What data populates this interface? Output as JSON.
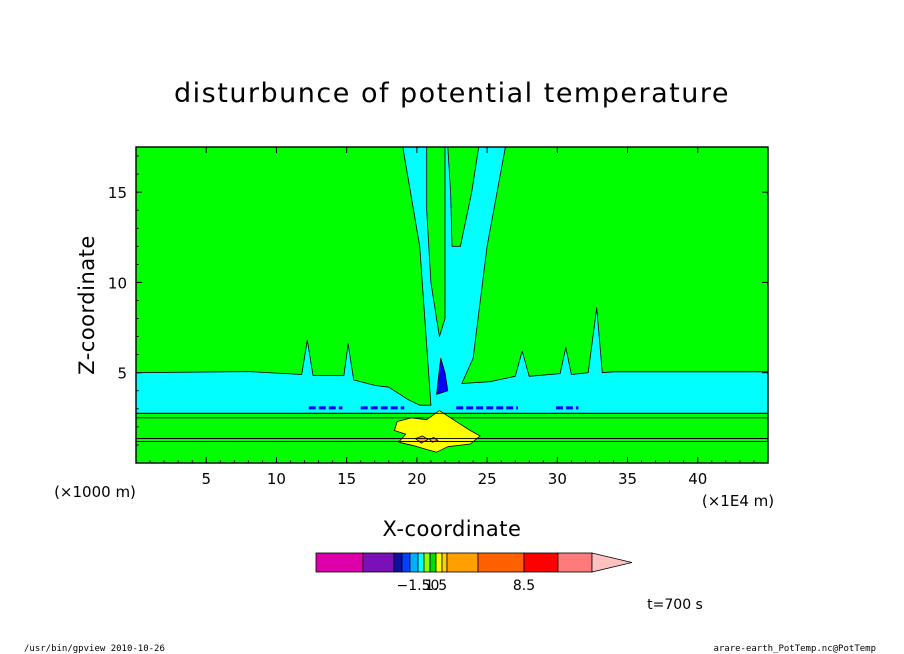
{
  "chart_data": {
    "type": "contour",
    "title": "disturbunce of potential temperature",
    "xlabel": "X-coordinate",
    "ylabel": "Z-coordinate",
    "x_unit": "(×1E4 m)",
    "y_unit": "(×1000 m)",
    "xlim": [
      0,
      4.5
    ],
    "ylim": [
      0,
      17.5
    ],
    "x_ticks": [
      {
        "v": 0.5,
        "l": "5"
      },
      {
        "v": 1.0,
        "l": "10"
      },
      {
        "v": 1.5,
        "l": "15"
      },
      {
        "v": 2.0,
        "l": "20"
      },
      {
        "v": 2.5,
        "l": "25"
      },
      {
        "v": 3.0,
        "l": "30"
      },
      {
        "v": 3.5,
        "l": "35"
      },
      {
        "v": 4.0,
        "l": "40"
      }
    ],
    "y_ticks": [
      {
        "v": 5,
        "l": "5"
      },
      {
        "v": 10,
        "l": "10"
      },
      {
        "v": 15,
        "l": "15"
      }
    ],
    "background_color": "#00ff00",
    "regions": [
      {
        "color": "#00ffff",
        "points": [
          [
            0,
            5
          ],
          [
            0.8,
            5.06
          ],
          [
            1.18,
            4.9
          ],
          [
            1.22,
            6.8
          ],
          [
            1.26,
            4.85
          ],
          [
            1.48,
            4.85
          ],
          [
            1.51,
            6.6
          ],
          [
            1.55,
            4.6
          ],
          [
            1.7,
            4.3
          ],
          [
            1.8,
            4.2
          ],
          [
            1.94,
            3.5
          ],
          [
            2.02,
            3.2
          ],
          [
            2.1,
            3.2
          ],
          [
            2.02,
            12
          ],
          [
            1.9,
            17.5
          ],
          [
            2.63,
            17.5
          ],
          [
            2.5,
            12
          ],
          [
            2.4,
            5.8
          ],
          [
            2.32,
            4.4
          ],
          [
            2.52,
            4.5
          ],
          [
            2.7,
            4.8
          ],
          [
            2.75,
            6.2
          ],
          [
            2.8,
            4.8
          ],
          [
            3.02,
            4.95
          ],
          [
            3.06,
            6.4
          ],
          [
            3.1,
            4.9
          ],
          [
            3.22,
            5
          ],
          [
            3.28,
            8.6
          ],
          [
            3.32,
            5
          ],
          [
            3.4,
            5.05
          ],
          [
            4.5,
            5.05
          ],
          [
            4.5,
            2.75
          ],
          [
            0,
            2.75
          ]
        ]
      },
      {
        "color": "#00ff00",
        "points": [
          [
            2.07,
            17.5
          ],
          [
            2.07,
            14
          ],
          [
            2.1,
            10
          ],
          [
            2.16,
            7
          ],
          [
            2.2,
            8
          ],
          [
            2.2,
            17.5
          ]
        ]
      },
      {
        "color": "#00ff00",
        "points": [
          [
            2.22,
            17.5
          ],
          [
            2.24,
            15
          ],
          [
            2.25,
            12
          ],
          [
            2.31,
            12
          ],
          [
            2.39,
            15
          ],
          [
            2.44,
            17.5
          ]
        ]
      },
      {
        "color": "#0000ff",
        "points": [
          [
            2.14,
            3.8
          ],
          [
            2.16,
            5.2
          ],
          [
            2.17,
            5.8
          ],
          [
            2.2,
            5
          ],
          [
            2.22,
            4
          ]
        ]
      },
      {
        "color": "#00ff00",
        "points": [
          [
            0,
            2.5
          ],
          [
            4.5,
            2.5
          ],
          [
            4.5,
            1.35
          ],
          [
            0,
            1.35
          ]
        ]
      },
      {
        "color": "#ffff00",
        "points": [
          [
            1.86,
            2.3
          ],
          [
            1.96,
            2.5
          ],
          [
            2.07,
            2.4
          ],
          [
            2.16,
            2.9
          ],
          [
            2.22,
            2.6
          ],
          [
            2.3,
            2.2
          ],
          [
            2.38,
            1.8
          ],
          [
            2.45,
            1.5
          ],
          [
            2.38,
            1.05
          ],
          [
            2.22,
            0.9
          ],
          [
            2.14,
            0.6
          ],
          [
            2.07,
            0.75
          ],
          [
            1.98,
            0.95
          ],
          [
            1.87,
            1.15
          ],
          [
            1.92,
            1.6
          ],
          [
            1.84,
            1.8
          ]
        ]
      },
      {
        "color": "#ffa500",
        "points": [
          [
            1.99,
            1.35
          ],
          [
            2.04,
            1.5
          ],
          [
            2.08,
            1.3
          ],
          [
            2.03,
            1.1
          ]
        ]
      },
      {
        "color": "#ffa500",
        "points": [
          [
            2.09,
            1.3
          ],
          [
            2.12,
            1.42
          ],
          [
            2.15,
            1.25
          ],
          [
            2.11,
            1.15
          ]
        ]
      }
    ],
    "contour_lines": [
      [
        [
          0,
          2.75
        ],
        [
          4.5,
          2.75
        ]
      ],
      [
        [
          0,
          1.36
        ],
        [
          4.5,
          1.36
        ]
      ],
      [
        [
          0,
          1.19
        ],
        [
          4.5,
          1.19
        ]
      ]
    ],
    "dashes": [
      {
        "x": [
          1.23,
          1.47
        ],
        "y": 3.05,
        "color": "#0000ff"
      },
      {
        "x": [
          1.6,
          1.91
        ],
        "y": 3.05,
        "color": "#0000ff"
      },
      {
        "x": [
          2.28,
          2.72
        ],
        "y": 3.05,
        "color": "#0000ff"
      },
      {
        "x": [
          2.99,
          3.15
        ],
        "y": 3.05,
        "color": "#0000ff"
      }
    ],
    "colorbar": {
      "colors": [
        "#dd00aa",
        "#7a10b8",
        "#1010a0",
        "#0040ff",
        "#00b0ff",
        "#00ffff",
        "#90ff00",
        "#00dd00",
        "#ffff00",
        "#ffd000",
        "#ffa000",
        "#ff6000",
        "#ff0000",
        "#ff7a7a",
        "#ffc0c0"
      ],
      "labels": [
        {
          "after": 5,
          "text": "−1.50"
        },
        {
          "after": 8,
          "text": "1.5"
        },
        {
          "after": 12,
          "text": "8.5"
        }
      ]
    },
    "time_label": "t=700 s"
  },
  "footer": {
    "left": "/usr/bin/gpview   2010-10-26",
    "right": "arare-earth_PotTemp.nc@PotTemp"
  }
}
